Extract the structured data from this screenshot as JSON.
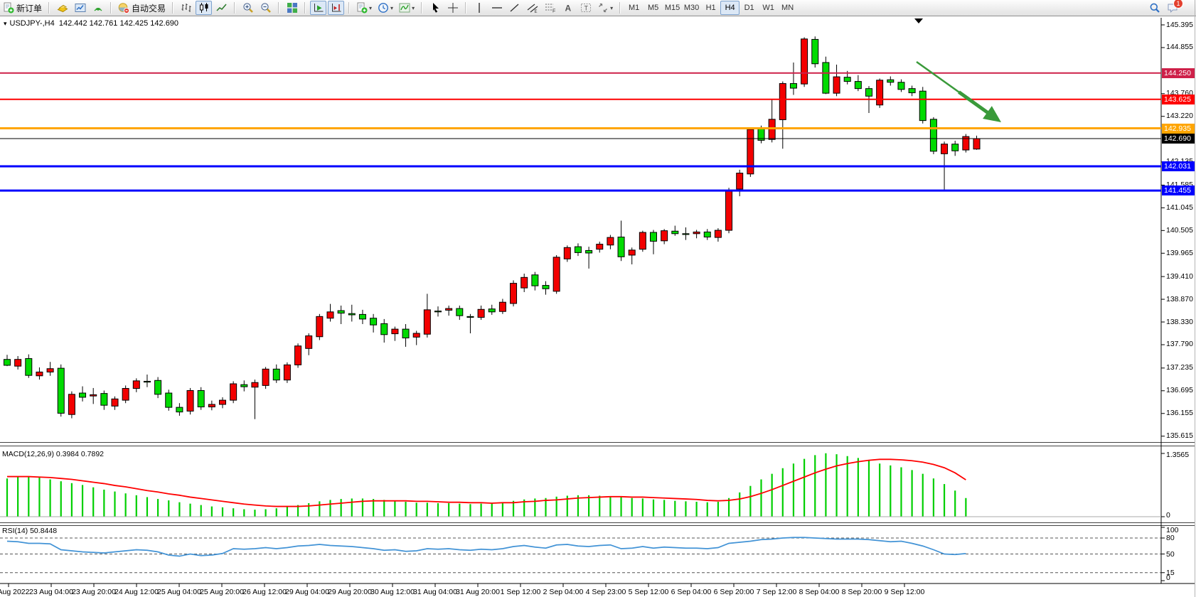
{
  "toolbar": {
    "buttons": [
      {
        "name": "new-order-button",
        "icon": "new-order",
        "label": "新订单"
      },
      {
        "sep": true
      },
      {
        "name": "market-watch-button",
        "icon": "market-watch"
      },
      {
        "name": "data-window-button",
        "icon": "data-window"
      },
      {
        "name": "navigator-button",
        "icon": "navigator"
      },
      {
        "sep": true
      },
      {
        "name": "autotrading-button",
        "icon": "autotrading",
        "label": "自动交易"
      },
      {
        "sep": true
      },
      {
        "name": "bar-chart-button",
        "icon": "chart-bars"
      },
      {
        "name": "candlestick-chart-button",
        "icon": "chart-candles",
        "pressed": true
      },
      {
        "name": "line-chart-button",
        "icon": "chart-line"
      },
      {
        "sep": true
      },
      {
        "name": "zoom-in-button",
        "icon": "zoom-in"
      },
      {
        "name": "zoom-out-button",
        "icon": "zoom-out"
      },
      {
        "sep": true
      },
      {
        "name": "tile-windows-button",
        "icon": "tile-windows"
      },
      {
        "sep": true
      },
      {
        "name": "auto-scroll-button",
        "icon": "auto-scroll",
        "pressed": true
      },
      {
        "name": "chart-shift-button",
        "icon": "chart-shift",
        "pressed": true
      },
      {
        "sep": true
      },
      {
        "name": "templates-button",
        "icon": "template",
        "dropdown": true
      },
      {
        "name": "period-button",
        "icon": "clock",
        "dropdown": true
      },
      {
        "name": "indicators-button",
        "icon": "indicators",
        "dropdown": true
      },
      {
        "sep": true
      },
      {
        "name": "cursor-button",
        "icon": "cursor"
      },
      {
        "name": "crosshair-button",
        "icon": "crosshair"
      },
      {
        "sep": true
      },
      {
        "name": "vline-button",
        "icon": "vline"
      },
      {
        "name": "hline-button",
        "icon": "hline"
      },
      {
        "name": "trendline-button",
        "icon": "trendline"
      },
      {
        "name": "channel-button",
        "icon": "channel"
      },
      {
        "name": "fibonacci-button",
        "icon": "fibonacci"
      },
      {
        "name": "text-button",
        "icon": "text"
      },
      {
        "name": "label-button",
        "icon": "label"
      },
      {
        "name": "arrows-button",
        "icon": "arrows",
        "dropdown": true
      },
      {
        "sep": true
      }
    ],
    "timeframes": [
      "M1",
      "M5",
      "M15",
      "M30",
      "H1",
      "H4",
      "D1",
      "W1",
      "MN"
    ],
    "active_timeframe": "H4",
    "search_icon": "search",
    "chat_icon": "chat",
    "notification_count": "1"
  },
  "chart": {
    "collapse_caret": "▾",
    "title_symbol": "USDJPY-,H4",
    "title_ohlc": "142.442 142.761 142.425 142.690",
    "price_ticks": [
      "145.395",
      "144.855",
      "143.760",
      "143.220",
      "142.135",
      "141.585",
      "141.045",
      "140.505",
      "139.965",
      "139.410",
      "138.870",
      "138.330",
      "137.790",
      "137.235",
      "136.695",
      "136.155",
      "135.615"
    ],
    "hlines": [
      {
        "price": 144.25,
        "label": "144.250",
        "color": "#CE2049",
        "width": 2
      },
      {
        "price": 143.625,
        "label": "143.625",
        "color": "#FE0000",
        "width": 2
      },
      {
        "price": 142.935,
        "label": "142.935",
        "color": "#FFA500",
        "width": 3
      },
      {
        "price": 142.69,
        "label": "142.690",
        "color": "#000000",
        "width": 1
      },
      {
        "price": 142.031,
        "label": "142.031",
        "color": "#0000FE",
        "width": 3
      },
      {
        "price": 141.455,
        "label": "141.455",
        "color": "#0000FE",
        "width": 3
      }
    ],
    "time_ticks": [
      "22 Aug 2022",
      "23 Aug 04:00",
      "23 Aug 20:00",
      "24 Aug 12:00",
      "25 Aug 04:00",
      "25 Aug 20:00",
      "26 Aug 12:00",
      "29 Aug 04:00",
      "29 Aug 20:00",
      "30 Aug 12:00",
      "31 Aug 04:00",
      "31 Aug 20:00",
      "1 Sep 12:00",
      "2 Sep 04:00",
      "4 Sep 23:00",
      "5 Sep 12:00",
      "6 Sep 04:00",
      "6 Sep 20:00",
      "7 Sep 12:00",
      "8 Sep 04:00",
      "8 Sep 20:00",
      "9 Sep 12:00"
    ]
  },
  "indicators": {
    "macd": {
      "label": "MACD(12,26,9) 0.3984 0.7892",
      "scale_max": "1.3565",
      "scale_min": "0"
    },
    "rsi": {
      "label": "RSI(14) 50.8448",
      "scale_labels": [
        "100",
        "80",
        "50",
        "15",
        "0"
      ],
      "levels": [
        80,
        50,
        15
      ]
    }
  },
  "annotations": {
    "arrow": {
      "color": "#3A9A3A",
      "from": [
        1289,
        64
      ],
      "to": [
        1408,
        149
      ]
    },
    "shift_marker_x": 1292
  },
  "colors": {
    "bull": "#F30000",
    "bear": "#00DB00",
    "wick": "#000000",
    "macd_hist": "#00CF00",
    "macd_signal": "#FF0000",
    "rsi_line": "#4293D6",
    "background": "#FFFFFF"
  },
  "chart_data": [
    {
      "type": "candlestick",
      "title": "USDJPY-,H4",
      "timeframe": "H4",
      "note": "OHLC per bar, 22 Aug 2022 - 9 Sep 2022; up bars red, down bars green (CN convention)",
      "ylim": [
        135.615,
        145.395
      ],
      "ohlc": [
        [
          137.44,
          137.55,
          137.28,
          137.3
        ],
        [
          137.28,
          137.52,
          137.2,
          137.44
        ],
        [
          137.46,
          137.56,
          137.0,
          137.06
        ],
        [
          137.05,
          137.25,
          136.96,
          137.14
        ],
        [
          137.14,
          137.38,
          137.05,
          137.22
        ],
        [
          137.23,
          137.32,
          136.08,
          136.16
        ],
        [
          136.13,
          136.68,
          136.04,
          136.61
        ],
        [
          136.64,
          136.8,
          136.44,
          136.54
        ],
        [
          136.57,
          136.76,
          136.38,
          136.6
        ],
        [
          136.63,
          136.7,
          136.24,
          136.35
        ],
        [
          136.33,
          136.56,
          136.24,
          136.5
        ],
        [
          136.47,
          136.82,
          136.4,
          136.75
        ],
        [
          136.75,
          136.99,
          136.66,
          136.93
        ],
        [
          136.92,
          137.08,
          136.78,
          136.9
        ],
        [
          136.94,
          137.02,
          136.52,
          136.61
        ],
        [
          136.64,
          136.72,
          136.22,
          136.3
        ],
        [
          136.3,
          136.4,
          136.1,
          136.19
        ],
        [
          136.21,
          136.76,
          136.13,
          136.7
        ],
        [
          136.7,
          136.78,
          136.24,
          136.31
        ],
        [
          136.31,
          136.46,
          136.23,
          136.37
        ],
        [
          136.37,
          136.54,
          136.28,
          136.47
        ],
        [
          136.47,
          136.92,
          136.4,
          136.86
        ],
        [
          136.84,
          136.94,
          136.68,
          136.79
        ],
        [
          136.78,
          136.96,
          136.02,
          136.89
        ],
        [
          136.82,
          137.26,
          136.74,
          137.21
        ],
        [
          137.21,
          137.32,
          136.88,
          136.95
        ],
        [
          136.95,
          137.37,
          136.88,
          137.31
        ],
        [
          137.31,
          137.82,
          137.24,
          137.76
        ],
        [
          137.7,
          138.06,
          137.54,
          138.0
        ],
        [
          137.98,
          138.52,
          137.9,
          138.46
        ],
        [
          138.42,
          138.76,
          138.34,
          138.57
        ],
        [
          138.6,
          138.72,
          138.28,
          138.54
        ],
        [
          138.53,
          138.74,
          138.34,
          138.5
        ],
        [
          138.51,
          138.62,
          138.28,
          138.4
        ],
        [
          138.42,
          138.52,
          138.08,
          138.26
        ],
        [
          138.29,
          138.4,
          137.84,
          138.03
        ],
        [
          138.05,
          138.22,
          137.88,
          138.16
        ],
        [
          138.16,
          138.28,
          137.74,
          137.95
        ],
        [
          137.97,
          138.12,
          137.78,
          138.06
        ],
        [
          138.04,
          139.0,
          137.96,
          138.62
        ],
        [
          138.59,
          138.7,
          138.46,
          138.57
        ],
        [
          138.61,
          138.72,
          138.48,
          138.65
        ],
        [
          138.65,
          138.72,
          138.38,
          138.48
        ],
        [
          138.46,
          138.52,
          138.06,
          138.44
        ],
        [
          138.44,
          138.72,
          138.38,
          138.63
        ],
        [
          138.64,
          138.74,
          138.5,
          138.57
        ],
        [
          138.58,
          138.88,
          138.52,
          138.8
        ],
        [
          138.77,
          139.32,
          138.7,
          139.25
        ],
        [
          139.14,
          139.48,
          139.04,
          139.39
        ],
        [
          139.45,
          139.52,
          139.08,
          139.19
        ],
        [
          139.2,
          139.3,
          138.98,
          139.12
        ],
        [
          139.06,
          139.92,
          139.0,
          139.87
        ],
        [
          139.83,
          140.15,
          139.76,
          140.1
        ],
        [
          140.12,
          140.2,
          139.9,
          139.98
        ],
        [
          140.03,
          140.12,
          139.6,
          139.97
        ],
        [
          140.06,
          140.24,
          139.98,
          140.18
        ],
        [
          140.16,
          140.4,
          140.06,
          140.34
        ],
        [
          140.35,
          140.74,
          139.78,
          139.88
        ],
        [
          139.92,
          140.1,
          139.7,
          140.04
        ],
        [
          140.06,
          140.5,
          140.0,
          140.46
        ],
        [
          140.46,
          140.52,
          139.94,
          140.25
        ],
        [
          140.26,
          140.54,
          140.18,
          140.5
        ],
        [
          140.49,
          140.62,
          140.38,
          140.43
        ],
        [
          140.43,
          140.58,
          140.28,
          140.41
        ],
        [
          140.43,
          140.52,
          140.32,
          140.47
        ],
        [
          140.47,
          140.54,
          140.28,
          140.35
        ],
        [
          140.34,
          140.56,
          140.24,
          140.51
        ],
        [
          140.51,
          141.52,
          140.44,
          141.46
        ],
        [
          141.49,
          141.95,
          141.32,
          141.87
        ],
        [
          141.85,
          142.95,
          141.78,
          142.91
        ],
        [
          142.94,
          143.0,
          142.58,
          142.65
        ],
        [
          142.67,
          143.62,
          142.6,
          143.15
        ],
        [
          143.14,
          144.05,
          142.45,
          144.0
        ],
        [
          144.0,
          144.5,
          143.73,
          143.89
        ],
        [
          143.99,
          145.1,
          143.92,
          145.06
        ],
        [
          145.05,
          145.12,
          144.38,
          144.47
        ],
        [
          144.5,
          144.64,
          143.75,
          143.77
        ],
        [
          143.77,
          144.45,
          143.7,
          144.16
        ],
        [
          144.15,
          144.3,
          143.98,
          144.05
        ],
        [
          144.05,
          144.2,
          143.82,
          143.88
        ],
        [
          143.88,
          143.94,
          143.3,
          143.7
        ],
        [
          143.49,
          144.12,
          143.42,
          144.08
        ],
        [
          144.09,
          144.17,
          143.95,
          144.03
        ],
        [
          144.03,
          144.1,
          143.8,
          143.86
        ],
        [
          143.88,
          143.95,
          143.7,
          143.78
        ],
        [
          143.82,
          143.92,
          143.05,
          143.12
        ],
        [
          143.15,
          143.2,
          142.32,
          142.39
        ],
        [
          142.33,
          142.62,
          141.48,
          142.56
        ],
        [
          142.56,
          142.64,
          142.28,
          142.4
        ],
        [
          142.42,
          142.8,
          142.36,
          142.74
        ],
        [
          142.442,
          142.761,
          142.425,
          142.69
        ]
      ]
    },
    {
      "type": "bar",
      "name": "MACD histogram (12,26,9)",
      "ylim": [
        0,
        1.3565
      ],
      "values": [
        0.82,
        0.85,
        0.86,
        0.84,
        0.8,
        0.76,
        0.72,
        0.68,
        0.63,
        0.58,
        0.54,
        0.5,
        0.46,
        0.42,
        0.38,
        0.35,
        0.31,
        0.28,
        0.25,
        0.22,
        0.2,
        0.18,
        0.16,
        0.15,
        0.16,
        0.18,
        0.21,
        0.25,
        0.29,
        0.33,
        0.36,
        0.38,
        0.39,
        0.39,
        0.38,
        0.36,
        0.34,
        0.32,
        0.3,
        0.3,
        0.29,
        0.29,
        0.28,
        0.27,
        0.28,
        0.29,
        0.31,
        0.34,
        0.37,
        0.39,
        0.4,
        0.43,
        0.45,
        0.46,
        0.46,
        0.45,
        0.44,
        0.42,
        0.4,
        0.39,
        0.37,
        0.36,
        0.34,
        0.33,
        0.32,
        0.31,
        0.32,
        0.4,
        0.52,
        0.66,
        0.8,
        0.92,
        1.04,
        1.14,
        1.24,
        1.32,
        1.36,
        1.34,
        1.3,
        1.26,
        1.2,
        1.14,
        1.1,
        1.06,
        1.0,
        0.92,
        0.82,
        0.7,
        0.56,
        0.4
      ]
    },
    {
      "type": "line",
      "name": "MACD signal",
      "values": [
        0.86,
        0.86,
        0.86,
        0.85,
        0.84,
        0.82,
        0.8,
        0.77,
        0.74,
        0.71,
        0.67,
        0.64,
        0.6,
        0.56,
        0.53,
        0.49,
        0.46,
        0.42,
        0.39,
        0.36,
        0.33,
        0.3,
        0.27,
        0.25,
        0.23,
        0.22,
        0.22,
        0.22,
        0.23,
        0.25,
        0.27,
        0.29,
        0.31,
        0.33,
        0.34,
        0.34,
        0.34,
        0.34,
        0.33,
        0.33,
        0.32,
        0.31,
        0.31,
        0.3,
        0.3,
        0.29,
        0.3,
        0.3,
        0.32,
        0.33,
        0.35,
        0.36,
        0.38,
        0.4,
        0.41,
        0.42,
        0.43,
        0.43,
        0.42,
        0.42,
        0.41,
        0.4,
        0.39,
        0.38,
        0.37,
        0.35,
        0.34,
        0.35,
        0.38,
        0.43,
        0.5,
        0.58,
        0.67,
        0.76,
        0.85,
        0.94,
        1.02,
        1.09,
        1.14,
        1.18,
        1.21,
        1.23,
        1.23,
        1.22,
        1.2,
        1.17,
        1.12,
        1.05,
        0.94,
        0.79
      ]
    },
    {
      "type": "line",
      "name": "RSI(14)",
      "ylim": [
        0,
        100
      ],
      "levels": [
        80,
        50,
        15
      ],
      "values": [
        74,
        73,
        70,
        70,
        69,
        58,
        56,
        54,
        53,
        52,
        54,
        56,
        58,
        57,
        54,
        48,
        46,
        50,
        47,
        48,
        51,
        60,
        59,
        60,
        62,
        60,
        62,
        65,
        66,
        68,
        66,
        65,
        64,
        62,
        60,
        57,
        58,
        55,
        56,
        60,
        59,
        60,
        58,
        57,
        59,
        58,
        60,
        64,
        66,
        63,
        61,
        67,
        68,
        65,
        64,
        66,
        67,
        60,
        61,
        64,
        61,
        63,
        62,
        61,
        61,
        60,
        62,
        70,
        72,
        74,
        77,
        78,
        80,
        81,
        81,
        80,
        79,
        78,
        78,
        78,
        77,
        75,
        73,
        74,
        70,
        65,
        58,
        50,
        49,
        50.84
      ]
    }
  ]
}
